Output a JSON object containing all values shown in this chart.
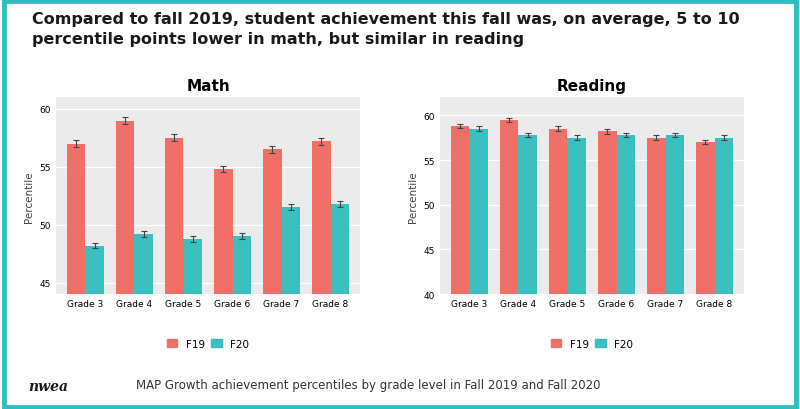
{
  "title_line1": "Compared to fall 2019, student achievement this fall was, on average, 5 to 10",
  "title_line2": "percentile points lower in math, but similar in reading",
  "subtitle": "MAP Growth achievement percentiles by grade level in Fall 2019 and Fall 2020",
  "math_title": "Math",
  "reading_title": "Reading",
  "grades": [
    "Grade 3",
    "Grade 4",
    "Grade 5",
    "Grade 6",
    "Grade 7",
    "Grade 8"
  ],
  "math_f19": [
    57.0,
    59.0,
    57.5,
    54.8,
    56.5,
    57.2
  ],
  "math_f20": [
    48.2,
    49.2,
    48.8,
    49.0,
    51.5,
    51.8
  ],
  "math_f19_err": [
    0.3,
    0.3,
    0.3,
    0.25,
    0.3,
    0.3
  ],
  "math_f20_err": [
    0.25,
    0.25,
    0.25,
    0.25,
    0.25,
    0.25
  ],
  "math_ylim": [
    44,
    61
  ],
  "math_yticks": [
    45,
    50,
    55,
    60
  ],
  "reading_f19": [
    58.8,
    59.5,
    58.5,
    58.2,
    57.5,
    57.0
  ],
  "reading_f20": [
    58.5,
    57.8,
    57.5,
    57.8,
    57.8,
    57.5
  ],
  "reading_f19_err": [
    0.25,
    0.25,
    0.25,
    0.25,
    0.25,
    0.25
  ],
  "reading_f20_err": [
    0.25,
    0.25,
    0.25,
    0.25,
    0.25,
    0.25
  ],
  "reading_ylim": [
    40,
    62
  ],
  "reading_yticks": [
    40,
    45,
    50,
    55,
    60
  ],
  "color_f19": "#F07068",
  "color_f20": "#3BBFBF",
  "bar_width": 0.38,
  "plot_bg": "#EBEBEB",
  "fig_bg": "#FFFFFF",
  "border_color": "#2BBFBF",
  "ylabel": "Percentile",
  "legend_labels": [
    "F19",
    "F20"
  ],
  "title_fontsize": 11.5,
  "subtitle_fontsize": 8.5,
  "axis_title_fontsize": 11,
  "tick_fontsize": 6.5,
  "ylabel_fontsize": 7.5,
  "legend_fontsize": 7.5,
  "nwea_text": "nwea"
}
